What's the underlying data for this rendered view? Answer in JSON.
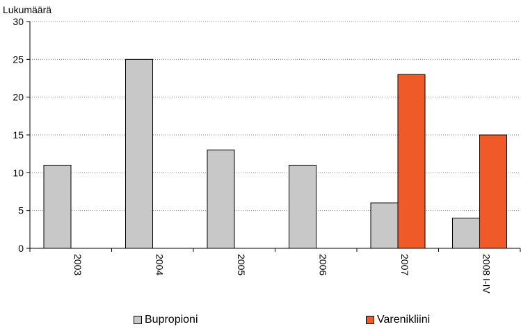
{
  "chart_data": {
    "type": "bar",
    "ylabel": "Lukumäärä",
    "ylim": [
      0,
      30
    ],
    "yticks": [
      0,
      5,
      10,
      15,
      20,
      25,
      30
    ],
    "categories": [
      "2003",
      "2004",
      "2005",
      "2006",
      "2007",
      "2008 I-IV"
    ],
    "series": [
      {
        "name": "Bupropioni",
        "color": "#c8c8c8",
        "values": [
          11,
          25,
          13,
          11,
          6,
          4
        ]
      },
      {
        "name": "Varenikliini",
        "color": "#f05a28",
        "values": [
          0,
          0,
          0,
          0,
          23,
          15
        ]
      }
    ],
    "grid": "horizontal dotted",
    "legend": "bottom"
  }
}
